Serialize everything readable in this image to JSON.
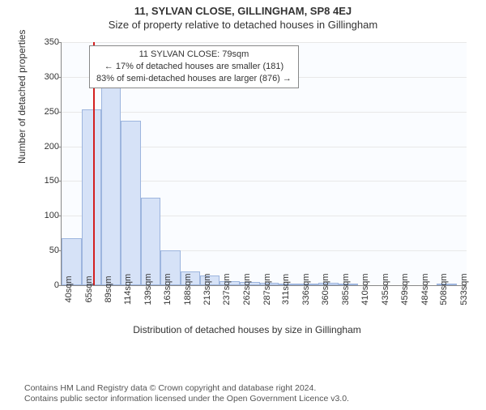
{
  "title": "11, SYLVAN CLOSE, GILLINGHAM, SP8 4EJ",
  "subtitle": "Size of property relative to detached houses in Gillingham",
  "ylabel": "Number of detached properties",
  "xlabel": "Distribution of detached houses by size in Gillingham",
  "info_box": {
    "line1": "11 SYLVAN CLOSE: 79sqm",
    "line2": "← 17% of detached houses are smaller (181)",
    "line3": "83% of semi-detached houses are larger (876) →"
  },
  "footer_line1": "Contains HM Land Registry data © Crown copyright and database right 2024.",
  "footer_line2": "Contains public sector information licensed under the Open Government Licence v3.0.",
  "chart": {
    "type": "histogram",
    "ylim": [
      0,
      350
    ],
    "ytick_step": 50,
    "bar_fill": "#d6e2f7",
    "bar_stroke": "#9db5de",
    "ref_line_color": "#d42020",
    "ref_line_x_sqm": 79,
    "background_color": "#fafcff",
    "grid_color": "#e8e8e8",
    "xtick_labels": [
      "40sqm",
      "65sqm",
      "89sqm",
      "114sqm",
      "139sqm",
      "163sqm",
      "188sqm",
      "213sqm",
      "237sqm",
      "262sqm",
      "287sqm",
      "311sqm",
      "336sqm",
      "360sqm",
      "385sqm",
      "410sqm",
      "435sqm",
      "459sqm",
      "484sqm",
      "508sqm",
      "533sqm"
    ],
    "xtick_values": [
      40,
      65,
      89,
      114,
      139,
      163,
      188,
      213,
      237,
      262,
      287,
      311,
      336,
      360,
      385,
      410,
      435,
      459,
      484,
      508,
      533
    ],
    "x_range": [
      40,
      545
    ],
    "bars": [
      {
        "x0": 40,
        "x1": 65,
        "count": 68
      },
      {
        "x0": 65,
        "x1": 89,
        "count": 253
      },
      {
        "x0": 89,
        "x1": 114,
        "count": 290
      },
      {
        "x0": 114,
        "x1": 139,
        "count": 237
      },
      {
        "x0": 139,
        "x1": 163,
        "count": 126
      },
      {
        "x0": 163,
        "x1": 188,
        "count": 50
      },
      {
        "x0": 188,
        "x1": 213,
        "count": 20
      },
      {
        "x0": 213,
        "x1": 237,
        "count": 14
      },
      {
        "x0": 237,
        "x1": 262,
        "count": 6
      },
      {
        "x0": 262,
        "x1": 287,
        "count": 5
      },
      {
        "x0": 287,
        "x1": 311,
        "count": 4
      },
      {
        "x0": 311,
        "x1": 336,
        "count": 1
      },
      {
        "x0": 336,
        "x1": 360,
        "count": 1
      },
      {
        "x0": 360,
        "x1": 385,
        "count": 3
      },
      {
        "x0": 385,
        "x1": 410,
        "count": 1
      },
      {
        "x0": 508,
        "x1": 533,
        "count": 1
      }
    ]
  }
}
